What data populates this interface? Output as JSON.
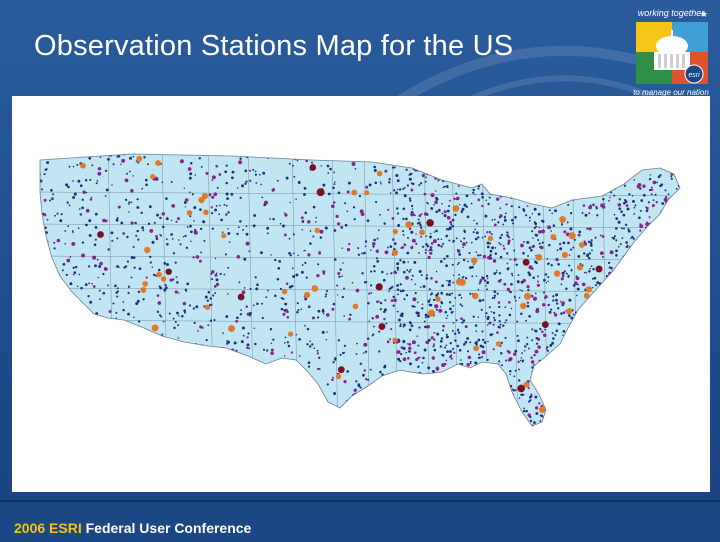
{
  "slide": {
    "title": "Observation Stations Map for the US",
    "logo_top_text": "working together",
    "logo_badge_text": "esri",
    "logo_bottom_text": "to manage our nation",
    "footer_year": "2006 ESRI",
    "footer_rest": " Federal User Conference"
  },
  "map": {
    "subject": "Observation stations, contiguous United States",
    "land_color": "#bfe6f2",
    "boundary_color": "#7b8fa6",
    "station_layers": [
      {
        "name": "dense-network",
        "color": "#1b2f7a"
      },
      {
        "name": "secondary-network",
        "color": "#8e1f8e"
      },
      {
        "name": "primary-stations",
        "color": "#e07a2a"
      },
      {
        "name": "key-stations",
        "color": "#7a1020"
      }
    ]
  },
  "colors": {
    "background": "#1f4f8e",
    "footer_accent": "#f3c318"
  }
}
